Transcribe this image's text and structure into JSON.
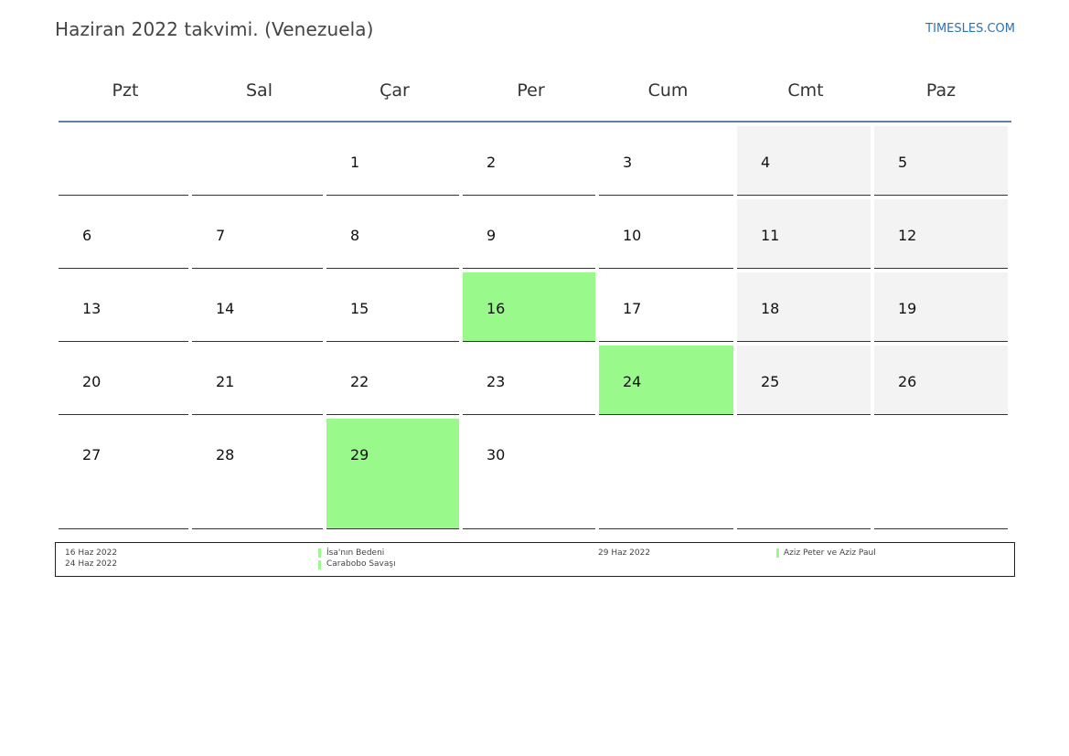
{
  "header": {
    "title": "Haziran 2022 takvimi. (Venezuela)",
    "brand": "TIMESLES.COM"
  },
  "weekdays": [
    "Pzt",
    "Sal",
    "Çar",
    "Per",
    "Cum",
    "Cmt",
    "Paz"
  ],
  "weeks": [
    [
      "",
      "",
      "1",
      "2",
      "3",
      "4",
      "5"
    ],
    [
      "6",
      "7",
      "8",
      "9",
      "10",
      "11",
      "12"
    ],
    [
      "13",
      "14",
      "15",
      "16",
      "17",
      "18",
      "19"
    ],
    [
      "20",
      "21",
      "22",
      "23",
      "24",
      "25",
      "26"
    ],
    [
      "27",
      "28",
      "29",
      "30",
      "",
      "",
      ""
    ]
  ],
  "holiday_days": [
    "16",
    "24",
    "29"
  ],
  "colors": {
    "holiday": "#99f98a",
    "weekend": "#f3f3f3",
    "header_rule": "#5f7fa5",
    "brand": "#2b73b7"
  },
  "legend": [
    {
      "date": "16 Haz 2022",
      "name": "İsa'nın Bedeni"
    },
    {
      "date": "24 Haz 2022",
      "name": "Carabobo Savaşı"
    },
    {
      "date": "29 Haz 2022",
      "name": "Aziz Peter ve Aziz Paul"
    }
  ]
}
